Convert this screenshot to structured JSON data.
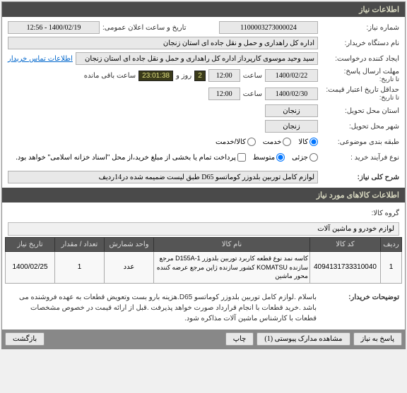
{
  "header": {
    "title": "اطلاعات نیاز"
  },
  "fields": {
    "req_number_label": "شماره نیاز:",
    "req_number": "1100003273000024",
    "public_date_label": "تاریخ و ساعت اعلان عمومی:",
    "public_date": "1400/02/19 - 12:56",
    "device_name_label": "نام دستگاه خریدار:",
    "device_name": "اداره کل راهداری و حمل و نقل جاده ای استان زنجان",
    "creator_label": "ایجاد کننده درخواست:",
    "creator": "سید وحید موسوی کارپرداز اداره کل راهداری و حمل و نقل جاده ای استان زنجان",
    "contact_link": "اطلاعات تماس خریدار",
    "deadline_label": "مهلت ارسال پاسخ:",
    "deadline_to": "تا تاریخ:",
    "deadline_date": "1400/02/22",
    "hour_label": "ساعت",
    "deadline_hour": "12:00",
    "days_remain": "2",
    "days_label": "روز و",
    "timer": "23:01:38",
    "remain_label": "ساعت باقی مانده",
    "min_valid_label": "حداقل تاریخ اعتبار قیمت:",
    "min_valid_to": "تا تاریخ:",
    "min_valid_date": "1400/02/30",
    "min_valid_hour": "12:00",
    "delivery_state_label": "استان محل تحویل:",
    "delivery_state": "زنجان",
    "delivery_city_label": "شهر محل تحویل:",
    "delivery_city": "زنجان",
    "budget_label": "طبقه بندی موضوعی:",
    "goods_label": "کالا",
    "service_label": "خدمت",
    "both_label": "کالا/خدمت",
    "process_label": "نوع فرآیند خرید :",
    "low_label": "جزئی",
    "mid_label": "متوسط",
    "payment_note": "پرداخت تمام یا بخشی از مبلغ خرید،از محل \"اسناد خزانه اسلامی\" خواهد بود.",
    "subject_label": "شرح کلی نیاز:",
    "subject": "لوازم کامل توربین بلدوزر کوماتسو D65 طبق لیست ضمیمه شده در14ردیف"
  },
  "section2": {
    "title": "اطلاعات کالاهای مورد نیاز",
    "group_label": "گروه کالا:",
    "group_value": "لوازم خودرو و ماشین آلات"
  },
  "table": {
    "headers": {
      "row": "ردیف",
      "code": "کد کالا",
      "name": "نام کالا",
      "unit": "واحد شمارش",
      "qty": "تعداد / مقدار",
      "need_date": "تاریخ نیاز"
    },
    "rows": [
      {
        "row": "1",
        "code": "4094131733310040",
        "name": "کاسه نمد نوع قطعه کاربرد توربین بلدوزر D155A-1 مرجع سازنده KOMATSU کشور سازنده ژاپن مرجع عرضه کننده محور ماشین",
        "unit": "عدد",
        "qty": "1",
        "need_date": "1400/02/25"
      }
    ]
  },
  "buyer_note": {
    "label": "توضیحات خریدار:",
    "text": "باسلام .لوازم کامل توربین بلدوزر کوماتسو D65.هزینه بارو بست وتعویض قطعات به عهده فروشنده می باشد .خرید قطعات با انجام قرارداد صورت خواهد پذیرفت .قبل از ارائه قیمت در خصوص مشخصات قطعات با کارشناس ماشین آلات مذاکره شود."
  },
  "footer": {
    "reply": "پاسخ به نیاز",
    "attachments": "مشاهده مدارک پیوستی (1)",
    "print": "چاپ",
    "back": "بازگشت"
  },
  "radios": {
    "goods_checked": true,
    "mid_checked": true
  },
  "colors": {
    "header_bg": "#4a4a4a",
    "header_fg": "#d8d8c0",
    "th_bg": "#555555",
    "link": "#0066cc"
  }
}
